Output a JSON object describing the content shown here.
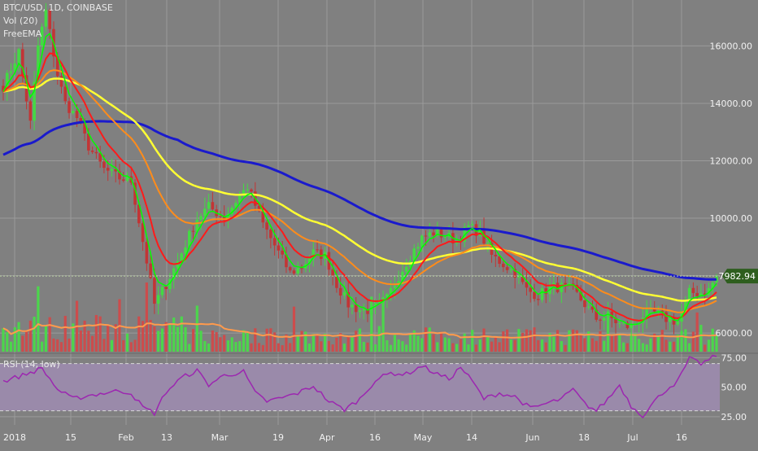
{
  "header": {
    "symbol": "BTC/USD, 1D, COINBASE",
    "volume": "Vol (20)",
    "overlay": "FreeEMA"
  },
  "rsi_label": "RSI (14, low)",
  "last_price_label": "7982.94",
  "colors": {
    "background": "#808080",
    "grid": "#9a9a9a",
    "candle_up": "#44d944",
    "candle_down": "#c23535",
    "ema_fast": "#00ff00",
    "ema_red": "#ff1a1a",
    "ema_orange": "#ff8c1a",
    "ema_yellow": "#ffff33",
    "ema_blue": "#1a1acc",
    "volume_up": "#4cd64c",
    "volume_down": "#cc4c4c",
    "volume_ma": "#ff9a4c",
    "rsi_line": "#9c27b0",
    "rsi_band": "#9a8aaa",
    "price_tag": "#2e5e1e"
  },
  "chart_data": {
    "type": "candlestick",
    "symbol": "BTC/USD",
    "interval": "1D",
    "exchange": "COINBASE",
    "price_axis": {
      "ticks": [
        "16000.00",
        "14000.00",
        "12000.00",
        "10000.00",
        "6000.00"
      ],
      "ylim": [
        5350,
        17600
      ]
    },
    "x_axis": {
      "ticks": [
        "2018",
        "15",
        "Feb",
        "13",
        "Mar",
        "19",
        "Apr",
        "16",
        "May",
        "14",
        "Jun",
        "18",
        "Jul",
        "16"
      ]
    },
    "keypoints": [
      [
        0,
        14600
      ],
      [
        4,
        15800
      ],
      [
        7,
        13300
      ],
      [
        9,
        16000
      ],
      [
        11,
        17200
      ],
      [
        14,
        15000
      ],
      [
        16,
        14000
      ],
      [
        19,
        13500
      ],
      [
        22,
        12500
      ],
      [
        26,
        11700
      ],
      [
        30,
        11400
      ],
      [
        33,
        11300
      ],
      [
        37,
        8500
      ],
      [
        39,
        7000
      ],
      [
        42,
        7700
      ],
      [
        45,
        8500
      ],
      [
        50,
        10000
      ],
      [
        53,
        10400
      ],
      [
        57,
        10000
      ],
      [
        60,
        10600
      ],
      [
        63,
        11100
      ],
      [
        67,
        9800
      ],
      [
        71,
        8800
      ],
      [
        74,
        8100
      ],
      [
        77,
        8300
      ],
      [
        80,
        8800
      ],
      [
        83,
        8700
      ],
      [
        86,
        7700
      ],
      [
        89,
        7000
      ],
      [
        92,
        6800
      ],
      [
        95,
        6800
      ],
      [
        99,
        7200
      ],
      [
        102,
        8000
      ],
      [
        105,
        8700
      ],
      [
        108,
        9300
      ],
      [
        111,
        9500
      ],
      [
        114,
        9400
      ],
      [
        117,
        9200
      ],
      [
        120,
        9700
      ],
      [
        123,
        9500
      ],
      [
        126,
        8700
      ],
      [
        129,
        8400
      ],
      [
        132,
        8100
      ],
      [
        135,
        7500
      ],
      [
        138,
        7300
      ],
      [
        141,
        7600
      ],
      [
        144,
        7600
      ],
      [
        147,
        7500
      ],
      [
        150,
        7000
      ],
      [
        153,
        6500
      ],
      [
        156,
        6600
      ],
      [
        159,
        6300
      ],
      [
        162,
        6200
      ],
      [
        165,
        6600
      ],
      [
        168,
        6700
      ],
      [
        171,
        6500
      ],
      [
        174,
        6400
      ],
      [
        177,
        7400
      ],
      [
        180,
        7400
      ],
      [
        182,
        7500
      ],
      [
        184,
        8000
      ]
    ],
    "last_price": 7982.94,
    "series": [
      {
        "name": "Vol (20)",
        "type": "volume"
      },
      {
        "name": "FreeEMA",
        "type": "ema"
      }
    ],
    "rsi": {
      "name": "RSI (14, low)",
      "ticks": [
        "75.00",
        "50.00",
        "25.00"
      ],
      "ylim": [
        18,
        78
      ],
      "levels": [
        70,
        30
      ],
      "keypoints": [
        [
          0,
          55
        ],
        [
          5,
          60
        ],
        [
          10,
          66
        ],
        [
          14,
          48
        ],
        [
          18,
          40
        ],
        [
          22,
          43
        ],
        [
          26,
          45
        ],
        [
          30,
          47
        ],
        [
          33,
          45
        ],
        [
          36,
          33
        ],
        [
          39,
          28
        ],
        [
          42,
          46
        ],
        [
          46,
          58
        ],
        [
          50,
          64
        ],
        [
          53,
          52
        ],
        [
          57,
          60
        ],
        [
          62,
          63
        ],
        [
          65,
          45
        ],
        [
          68,
          38
        ],
        [
          72,
          41
        ],
        [
          76,
          45
        ],
        [
          80,
          51
        ],
        [
          84,
          38
        ],
        [
          88,
          31
        ],
        [
          92,
          40
        ],
        [
          96,
          56
        ],
        [
          100,
          62
        ],
        [
          104,
          61
        ],
        [
          108,
          68
        ],
        [
          112,
          61
        ],
        [
          115,
          57
        ],
        [
          118,
          67
        ],
        [
          121,
          55
        ],
        [
          124,
          40
        ],
        [
          128,
          45
        ],
        [
          132,
          42
        ],
        [
          136,
          32
        ],
        [
          140,
          36
        ],
        [
          144,
          40
        ],
        [
          147,
          48
        ],
        [
          150,
          36
        ],
        [
          153,
          30
        ],
        [
          156,
          40
        ],
        [
          159,
          52
        ],
        [
          162,
          34
        ],
        [
          165,
          26
        ],
        [
          168,
          38
        ],
        [
          171,
          48
        ],
        [
          174,
          55
        ],
        [
          177,
          74
        ],
        [
          180,
          70
        ],
        [
          182,
          73
        ],
        [
          184,
          77
        ]
      ]
    }
  }
}
